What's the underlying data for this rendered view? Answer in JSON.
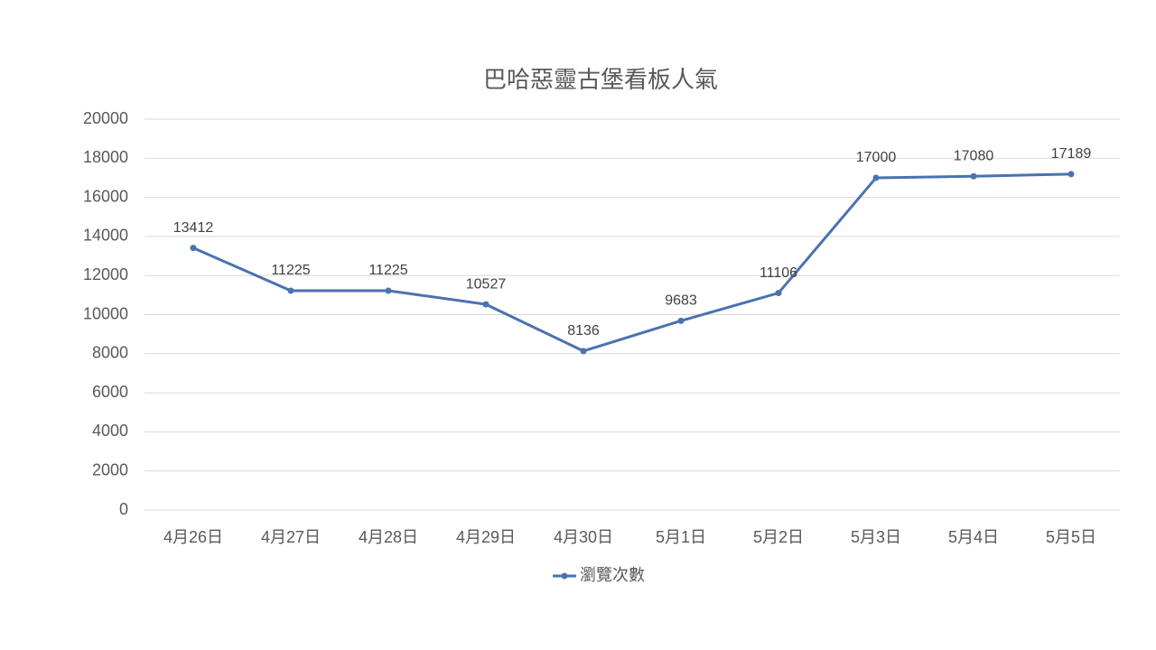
{
  "chart_data": {
    "type": "line",
    "title": "巴哈惡靈古堡看板人氣",
    "categories": [
      "4月26日",
      "4月27日",
      "4月28日",
      "4月29日",
      "4月30日",
      "5月1日",
      "5月2日",
      "5月3日",
      "5月4日",
      "5月5日"
    ],
    "series": [
      {
        "name": "瀏覽次數",
        "color": "#4a72b0",
        "values": [
          13412,
          11225,
          11225,
          10527,
          8136,
          9683,
          11106,
          17000,
          17080,
          17189
        ]
      }
    ],
    "ylim": [
      0,
      20000
    ],
    "yticks": [
      0,
      2000,
      4000,
      6000,
      8000,
      10000,
      12000,
      14000,
      16000,
      18000,
      20000
    ],
    "grid": true,
    "legend": "bottom"
  }
}
